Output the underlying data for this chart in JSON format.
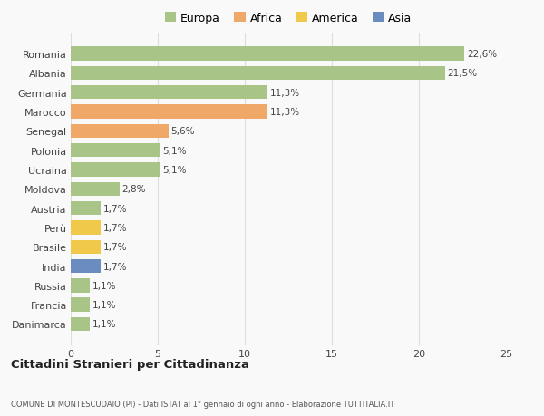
{
  "countries": [
    "Danimarca",
    "Francia",
    "Russia",
    "India",
    "Brasile",
    "Perù",
    "Austria",
    "Moldova",
    "Ucraina",
    "Polonia",
    "Senegal",
    "Marocco",
    "Germania",
    "Albania",
    "Romania"
  ],
  "values": [
    1.1,
    1.1,
    1.1,
    1.7,
    1.7,
    1.7,
    1.7,
    2.8,
    5.1,
    5.1,
    5.6,
    11.3,
    11.3,
    21.5,
    22.6
  ],
  "labels": [
    "1,1%",
    "1,1%",
    "1,1%",
    "1,7%",
    "1,7%",
    "1,7%",
    "1,7%",
    "2,8%",
    "5,1%",
    "5,1%",
    "5,6%",
    "11,3%",
    "11,3%",
    "21,5%",
    "22,6%"
  ],
  "colors": [
    "#a8c587",
    "#a8c587",
    "#a8c587",
    "#6b8cbf",
    "#f0c84a",
    "#f0c84a",
    "#a8c587",
    "#a8c587",
    "#a8c587",
    "#a8c587",
    "#f0a868",
    "#f0a868",
    "#a8c587",
    "#a8c587",
    "#a8c587"
  ],
  "legend_labels": [
    "Europa",
    "Africa",
    "America",
    "Asia"
  ],
  "legend_colors": [
    "#a8c587",
    "#f0a868",
    "#f0c84a",
    "#6b8cbf"
  ],
  "title": "Cittadini Stranieri per Cittadinanza",
  "subtitle": "COMUNE DI MONTESCUDAIO (PI) - Dati ISTAT al 1° gennaio di ogni anno - Elaborazione TUTTITALIA.IT",
  "xlim": [
    0,
    25
  ],
  "xticks": [
    0,
    5,
    10,
    15,
    20,
    25
  ],
  "background_color": "#f9f9f9",
  "grid_color": "#dddddd",
  "bar_height": 0.72
}
